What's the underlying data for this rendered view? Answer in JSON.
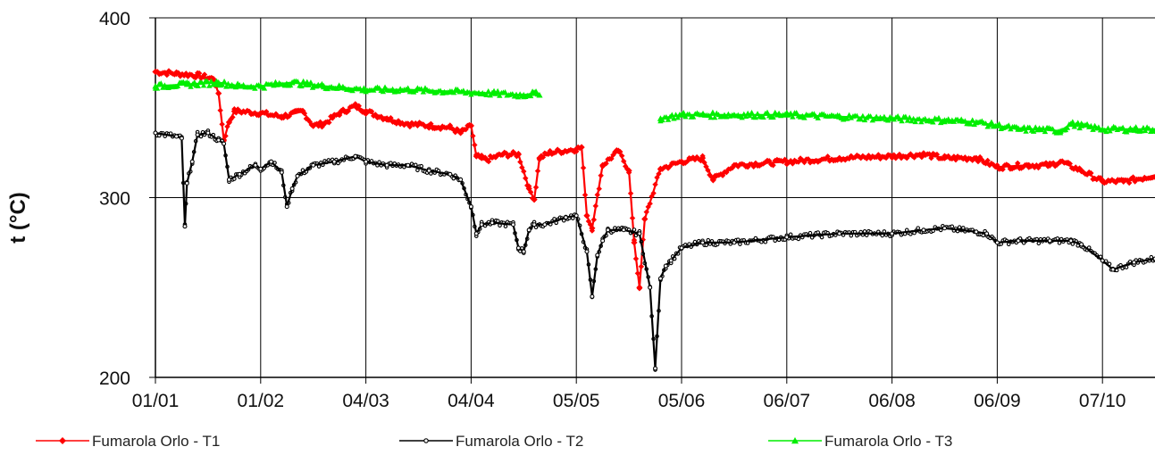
{
  "chart_data": {
    "type": "line",
    "title": "",
    "xlabel": "",
    "ylabel": "t (°C)",
    "ylim": [
      200,
      400
    ],
    "yticks": [
      200,
      300,
      400
    ],
    "x_ticks": [
      "01/01",
      "01/02",
      "04/03",
      "04/04",
      "05/05",
      "05/06",
      "06/07",
      "06/08",
      "06/09",
      "07/10"
    ],
    "grid": true,
    "legend_position": "bottom",
    "colors": {
      "T1": "#ff0000",
      "T2": "#000000",
      "T3": "#00ee00"
    },
    "series": [
      {
        "name": "Fumarola Orlo - T1",
        "marker": "diamond",
        "x": [
          0.0,
          0.2,
          0.4,
          0.55,
          0.6,
          0.65,
          0.7,
          0.75,
          0.8,
          1.0,
          1.2,
          1.4,
          1.5,
          1.6,
          1.75,
          1.9,
          2.0,
          2.2,
          2.4,
          2.6,
          2.8,
          2.9,
          3.0,
          3.05,
          3.1,
          3.15,
          3.3,
          3.45,
          3.55,
          3.6,
          3.65,
          3.75,
          4.0,
          4.05,
          4.1,
          4.15,
          4.25,
          4.4,
          4.5,
          4.55,
          4.6,
          4.65,
          4.8,
          5.0,
          5.2,
          5.3,
          5.5,
          6.0,
          6.5,
          7.0,
          7.3,
          7.5,
          7.8,
          8.0,
          8.3,
          8.5,
          8.6,
          8.8,
          9.0,
          9.2,
          9.4,
          9.6,
          9.7,
          9.8,
          9.9
        ],
        "values": [
          370,
          369,
          368,
          366,
          358,
          332,
          342,
          348,
          348,
          347,
          345,
          348,
          340,
          341,
          347,
          351,
          348,
          344,
          341,
          340,
          339,
          336,
          340,
          323,
          322,
          321,
          324,
          324,
          305,
          299,
          322,
          325,
          327,
          328,
          290,
          283,
          318,
          326,
          315,
          275,
          250,
          288,
          316,
          320,
          322,
          310,
          318,
          320,
          322,
          323,
          324,
          322,
          322,
          317,
          318,
          318,
          320,
          315,
          309,
          309,
          311,
          314,
          316,
          311,
          310
        ]
      },
      {
        "name": "Fumarola Orlo - T2",
        "marker": "circle",
        "x": [
          0.0,
          0.2,
          0.25,
          0.28,
          0.3,
          0.35,
          0.4,
          0.5,
          0.6,
          0.65,
          0.7,
          0.8,
          0.95,
          1.0,
          1.1,
          1.2,
          1.25,
          1.3,
          1.35,
          1.5,
          1.7,
          1.9,
          2.0,
          2.2,
          2.4,
          2.6,
          2.8,
          2.9,
          3.0,
          3.05,
          3.1,
          3.2,
          3.4,
          3.45,
          3.5,
          3.55,
          3.6,
          3.7,
          3.9,
          4.0,
          4.1,
          4.15,
          4.2,
          4.25,
          4.3,
          4.45,
          4.6,
          4.7,
          4.75,
          4.8,
          4.85,
          4.9,
          5.0,
          5.2,
          5.5,
          6.0,
          6.5,
          7.0,
          7.3,
          7.5,
          7.8,
          7.9,
          8.0,
          8.2,
          8.5,
          8.7,
          8.8,
          9.0,
          9.1,
          9.3,
          9.5,
          9.7,
          9.9
        ],
        "values": [
          336,
          334,
          333,
          284,
          308,
          320,
          335,
          336,
          332,
          330,
          310,
          313,
          318,
          316,
          320,
          314,
          295,
          305,
          312,
          318,
          320,
          323,
          320,
          318,
          318,
          315,
          313,
          310,
          295,
          280,
          285,
          286,
          285,
          272,
          270,
          282,
          285,
          285,
          289,
          290,
          270,
          245,
          268,
          276,
          282,
          282,
          280,
          250,
          205,
          255,
          262,
          265,
          272,
          275,
          275,
          278,
          280,
          280,
          282,
          283,
          281,
          280,
          275,
          276,
          276,
          276,
          274,
          265,
          260,
          264,
          266,
          268,
          266
        ]
      },
      {
        "name": "Fumarola Orlo - T3",
        "marker": "triangle",
        "x": [
          0.0,
          0.3,
          0.6,
          0.8,
          1.0,
          1.3,
          1.6,
          2.0,
          2.4,
          2.8,
          3.2,
          3.5,
          3.6,
          3.65,
          4.6,
          4.8,
          5.0,
          5.5,
          6.0,
          6.5,
          7.0,
          7.5,
          7.8,
          8.0,
          8.2,
          8.4,
          8.6,
          8.7,
          8.8,
          9.0,
          9.3,
          9.6,
          9.9
        ],
        "values": [
          362,
          363,
          364,
          362,
          362,
          364,
          362,
          360,
          360,
          359,
          358,
          357,
          358,
          357,
          null,
          344,
          346,
          346,
          346,
          345,
          344,
          343,
          342,
          340,
          338,
          338,
          337,
          341,
          340,
          338,
          338,
          338,
          337
        ]
      }
    ]
  }
}
